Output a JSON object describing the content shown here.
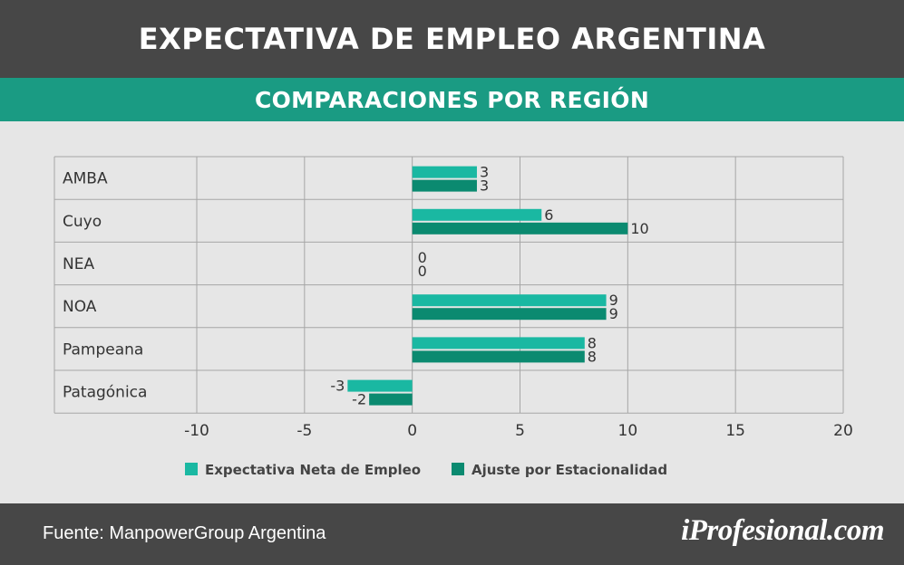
{
  "header": {
    "title": "EXPECTATIVA DE EMPLEO ARGENTINA"
  },
  "subheader": {
    "title": "COMPARACIONES POR REGIÓN"
  },
  "chart_data": {
    "type": "bar",
    "orientation": "horizontal",
    "categories": [
      "AMBA",
      "Cuyo",
      "NEA",
      "NOA",
      "Pampeana",
      "Patagónica"
    ],
    "series": [
      {
        "name": "Expectativa Neta de Empleo",
        "values": [
          3,
          6,
          0,
          9,
          8,
          -3
        ],
        "color": "#1ab8a2"
      },
      {
        "name": "Ajuste por Estacionalidad",
        "values": [
          3,
          10,
          0,
          9,
          8,
          -2
        ],
        "color": "#0b8a70"
      }
    ],
    "xlim": [
      -10,
      20
    ],
    "xticks": [
      -10,
      -5,
      0,
      5,
      10,
      15,
      20
    ],
    "grid": true,
    "legend": "bottom"
  },
  "footer": {
    "source": "Fuente: ManpowerGroup Argentina",
    "logo": "iProfesional.com"
  }
}
